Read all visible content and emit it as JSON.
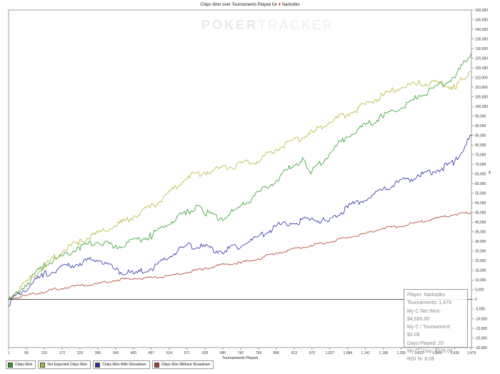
{
  "title": {
    "prefix": "Chips Won over Tournaments Played for",
    "player": "Narkotiks"
  },
  "watermark": {
    "left": "POKER",
    "right": "TRACKER"
  },
  "stats_box": {
    "player": "Player: Narkotiks",
    "tournaments": "Tournaments: 1,479",
    "net_won": "My C Net Won: $4,560.00",
    "per_tournament": "My C / Tournament: $3.08",
    "days": "Days Played: 20",
    "per_day": "My C / Day: $228.00",
    "roi": "ROI %: 8.08"
  },
  "colors": {
    "chips_won": "#2e9e2e",
    "net_expected": "#b4b43a",
    "with_showdown": "#2b2ba8",
    "without_showdown": "#b13c2c",
    "zero_line": "#444444",
    "grid": "#d0d0d0"
  },
  "chart_data": {
    "type": "line",
    "title": "Chips Won over Tournaments Played for Narkotiks",
    "xlabel": "Tournaments Played",
    "ylabel": "",
    "xlim": [
      1,
      1479
    ],
    "ylim": [
      -25000,
      150000
    ],
    "x_ticks": [
      "1",
      "58",
      "115",
      "172",
      "229",
      "286",
      "343",
      "400",
      "457",
      "514",
      "571",
      "628",
      "685",
      "742",
      "799",
      "856",
      "913",
      "970",
      "1,027",
      "1,084",
      "1,141",
      "1,198",
      "1,255",
      "1,312",
      "1,369",
      "1,426",
      "1,479"
    ],
    "x_tick_values": [
      1,
      58,
      115,
      172,
      229,
      286,
      343,
      400,
      457,
      514,
      571,
      628,
      685,
      742,
      799,
      856,
      913,
      970,
      1027,
      1084,
      1141,
      1198,
      1255,
      1312,
      1369,
      1426,
      1479
    ],
    "y_ticks": [
      150000,
      145000,
      140000,
      135000,
      130000,
      125000,
      120000,
      115000,
      110000,
      105000,
      100000,
      95000,
      90000,
      85000,
      80000,
      75000,
      70000,
      65000,
      60000,
      55000,
      50000,
      45000,
      40000,
      35000,
      30000,
      25000,
      20000,
      15000,
      10000,
      5000,
      0,
      -5000,
      -10000,
      -15000,
      -20000,
      -25000
    ],
    "y_tick_labels": [
      "150,000",
      "145,000",
      "140,000",
      "135,000",
      "130,000",
      "125,000",
      "120,000",
      "115,000",
      "110,000",
      "105,000",
      "100,000",
      "95,000",
      "90,000",
      "85,000",
      "80,000",
      "75,000",
      "70,000",
      "65,000",
      "60,000",
      "55,000",
      "50,000",
      "45,000",
      "40,000",
      "35,000",
      "30,000",
      "25,000",
      "20,000",
      "15,000",
      "10,000",
      "5,000",
      "0",
      "-5,000",
      "-10,000",
      "-15,000",
      "-20,000",
      "-25,000"
    ],
    "grid": true,
    "legend_position": "bottom-left",
    "series": [
      {
        "name": "Chips Won",
        "key": "chips_won",
        "x": [
          1,
          58,
          115,
          172,
          229,
          286,
          343,
          400,
          457,
          514,
          571,
          600,
          628,
          685,
          742,
          799,
          856,
          913,
          940,
          970,
          1027,
          1084,
          1141,
          1198,
          1255,
          1312,
          1369,
          1426,
          1479
        ],
        "y": [
          -1000,
          8000,
          18000,
          22000,
          27000,
          30000,
          27000,
          30000,
          33000,
          40000,
          45000,
          48000,
          45000,
          42000,
          48000,
          55000,
          62000,
          70000,
          72000,
          66000,
          76000,
          85000,
          90000,
          95000,
          100000,
          105000,
          110000,
          115000,
          128000
        ]
      },
      {
        "name": "Net Expected Chips Won",
        "key": "net_expected",
        "x": [
          1,
          58,
          115,
          172,
          229,
          286,
          343,
          400,
          457,
          514,
          571,
          628,
          685,
          742,
          799,
          856,
          913,
          970,
          1027,
          1084,
          1141,
          1198,
          1255,
          1312,
          1369,
          1426,
          1450,
          1479
        ],
        "y": [
          0,
          9000,
          17000,
          25000,
          30000,
          34000,
          38000,
          43000,
          48000,
          55000,
          64000,
          66000,
          68000,
          70000,
          72000,
          78000,
          82000,
          86000,
          92000,
          96000,
          101000,
          106000,
          110000,
          112000,
          112000,
          110000,
          114000,
          118000
        ]
      },
      {
        "name": "Chips Won With Showdown",
        "key": "with_showdown",
        "x": [
          1,
          58,
          115,
          172,
          229,
          286,
          343,
          400,
          457,
          514,
          571,
          628,
          685,
          742,
          799,
          856,
          913,
          970,
          1027,
          1084,
          1141,
          1198,
          1255,
          1312,
          1369,
          1426,
          1479
        ],
        "y": [
          -2000,
          6000,
          13000,
          16000,
          19000,
          21000,
          15000,
          13000,
          16000,
          22000,
          28000,
          27000,
          25000,
          28000,
          32000,
          38000,
          40000,
          42000,
          40000,
          48000,
          52000,
          57000,
          61000,
          64000,
          67000,
          71000,
          85000
        ]
      },
      {
        "name": "Chips Won Without Showdown",
        "key": "without_showdown",
        "x": [
          1,
          58,
          115,
          172,
          229,
          286,
          343,
          400,
          457,
          514,
          571,
          628,
          685,
          742,
          799,
          856,
          913,
          970,
          1027,
          1084,
          1141,
          1198,
          1255,
          1312,
          1369,
          1426,
          1479
        ],
        "y": [
          0,
          2000,
          4000,
          6000,
          7000,
          8000,
          10000,
          11000,
          11000,
          12000,
          14000,
          16000,
          18000,
          19000,
          21000,
          24000,
          26000,
          28000,
          30000,
          32000,
          34000,
          37000,
          38000,
          40000,
          42000,
          44000,
          45000
        ]
      }
    ]
  }
}
